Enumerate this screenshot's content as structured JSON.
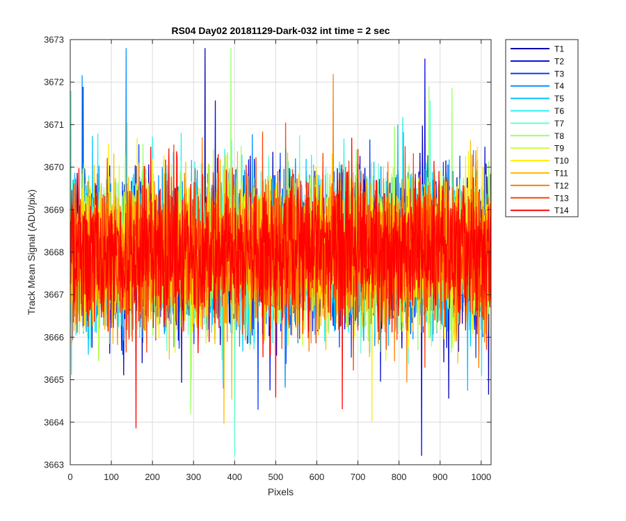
{
  "chart_data": {
    "type": "line",
    "title": "RS04 Day02 20181129-Dark-032 int time = 2 sec",
    "xlabel": "Pixels",
    "ylabel": "Track Mean Signal (ADU/pix)",
    "xlim": [
      0,
      1024
    ],
    "ylim": [
      3663,
      3673
    ],
    "x_ticks": [
      "0",
      "100",
      "200",
      "300",
      "400",
      "500",
      "600",
      "700",
      "800",
      "900",
      "1000"
    ],
    "y_ticks": [
      "3663",
      "3664",
      "3665",
      "3666",
      "3667",
      "3668",
      "3669",
      "3670",
      "3671",
      "3672",
      "3673"
    ],
    "grid": true,
    "legend_location": "outside-right",
    "n_pixels": 1024,
    "series": [
      {
        "name": "T1",
        "color": "#0000b3",
        "mean": 3668.0,
        "spread": 1.0
      },
      {
        "name": "T2",
        "color": "#0008d9",
        "mean": 3668.0,
        "spread": 1.0
      },
      {
        "name": "T3",
        "color": "#0040ff",
        "mean": 3668.0,
        "spread": 1.0
      },
      {
        "name": "T4",
        "color": "#0090ff",
        "mean": 3668.0,
        "spread": 1.0
      },
      {
        "name": "T5",
        "color": "#00c4ff",
        "mean": 3668.0,
        "spread": 1.0
      },
      {
        "name": "T6",
        "color": "#25f0f0",
        "mean": 3668.0,
        "spread": 1.0
      },
      {
        "name": "T7",
        "color": "#66ffcc",
        "mean": 3668.0,
        "spread": 1.0
      },
      {
        "name": "T8",
        "color": "#99ff66",
        "mean": 3668.0,
        "spread": 1.0
      },
      {
        "name": "T9",
        "color": "#ccff33",
        "mean": 3668.0,
        "spread": 1.0
      },
      {
        "name": "T10",
        "color": "#ffee00",
        "mean": 3668.0,
        "spread": 1.0
      },
      {
        "name": "T11",
        "color": "#ffbb00",
        "mean": 3668.0,
        "spread": 1.0
      },
      {
        "name": "T12",
        "color": "#ff8000",
        "mean": 3668.0,
        "spread": 1.0
      },
      {
        "name": "T13",
        "color": "#ff4000",
        "mean": 3668.0,
        "spread": 1.0
      },
      {
        "name": "T14",
        "color": "#ff0000",
        "mean": 3668.0,
        "spread": 1.0
      }
    ]
  }
}
